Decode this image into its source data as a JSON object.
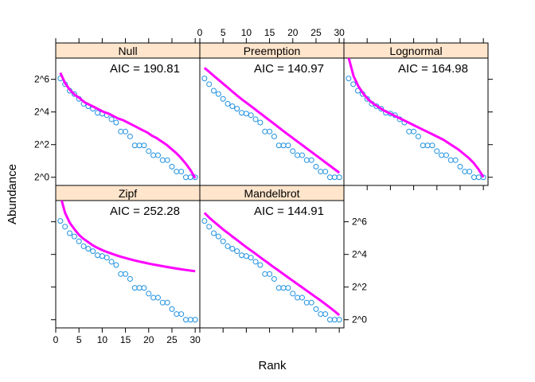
{
  "chart_data": {
    "type": "scatter",
    "layout": "lattice trellis, 3 columns x 2 rows",
    "xlabel": "Rank",
    "ylabel": "Abundance",
    "x_range": [
      0,
      31
    ],
    "y_log_base": 2,
    "y_range_log2": [
      -0.5,
      7.3
    ],
    "x_ticks": [
      0,
      5,
      10,
      15,
      20,
      25,
      30
    ],
    "x_tick_labels": [
      "0",
      "5",
      "10",
      "15",
      "20",
      "25",
      "30"
    ],
    "y_ticks_log2": [
      0,
      2,
      4,
      6
    ],
    "y_tick_labels": [
      "2^0",
      "2^2",
      "2^4",
      "2^6"
    ],
    "points_color": "#1e90e0",
    "fit_color": "#ff00ff",
    "strip_color": "#ffe5cc",
    "observed_log2": [
      6.05,
      5.7,
      5.3,
      5.1,
      4.8,
      4.5,
      4.35,
      4.2,
      3.95,
      3.9,
      3.8,
      3.55,
      3.35,
      2.8,
      2.8,
      2.5,
      1.95,
      1.95,
      1.95,
      1.6,
      1.35,
      1.35,
      1.05,
      1.05,
      0.65,
      0.35,
      0.35,
      0.0,
      0.0,
      0.0
    ],
    "panels": [
      {
        "name": "Null",
        "aic": "AIC = 190.81",
        "fit_log2": [
          6.4,
          5.75,
          5.35,
          5.05,
          4.85,
          4.6,
          4.45,
          4.3,
          4.15,
          4.0,
          3.9,
          3.75,
          3.6,
          3.5,
          3.35,
          3.2,
          3.05,
          2.9,
          2.75,
          2.55,
          2.4,
          2.2,
          2.0,
          1.75,
          1.5,
          1.2,
          0.85,
          0.45,
          -0.05
        ]
      },
      {
        "name": "Preemption",
        "aic": "AIC = 140.97",
        "fit_log2": [
          6.7,
          6.45,
          6.2,
          5.95,
          5.7,
          5.45,
          5.2,
          4.95,
          4.72,
          4.5,
          4.28,
          4.05,
          3.83,
          3.6,
          3.38,
          3.15,
          2.92,
          2.7,
          2.48,
          2.26,
          2.04,
          1.82,
          1.6,
          1.38,
          1.16,
          0.94,
          0.72,
          0.5,
          0.28
        ]
      },
      {
        "name": "Lognormal",
        "aic": "AIC = 164.98",
        "fit_log2": [
          7.35,
          6.2,
          5.55,
          5.1,
          4.75,
          4.5,
          4.3,
          4.1,
          3.95,
          3.8,
          3.65,
          3.5,
          3.35,
          3.2,
          3.05,
          2.9,
          2.75,
          2.6,
          2.45,
          2.3,
          2.1,
          1.9,
          1.7,
          1.45,
          1.2,
          0.9,
          0.5,
          0.0
        ]
      },
      {
        "name": "Zipf",
        "aic": "AIC = 252.28",
        "fit_log2": [
          7.6,
          6.55,
          5.95,
          5.55,
          5.2,
          4.95,
          4.75,
          4.55,
          4.4,
          4.27,
          4.15,
          4.05,
          3.95,
          3.86,
          3.78,
          3.7,
          3.63,
          3.56,
          3.5,
          3.44,
          3.38,
          3.33,
          3.28,
          3.23,
          3.18,
          3.13,
          3.09,
          3.05,
          3.01,
          2.97
        ]
      },
      {
        "name": "Mandelbrot",
        "aic": "AIC = 144.91",
        "fit_log2": [
          6.55,
          6.25,
          6.0,
          5.75,
          5.5,
          5.28,
          5.05,
          4.83,
          4.6,
          4.38,
          4.17,
          3.95,
          3.73,
          3.52,
          3.3,
          3.1,
          2.88,
          2.67,
          2.46,
          2.25,
          2.04,
          1.83,
          1.62,
          1.41,
          1.2,
          0.98,
          0.76,
          0.53,
          0.28
        ]
      }
    ]
  }
}
